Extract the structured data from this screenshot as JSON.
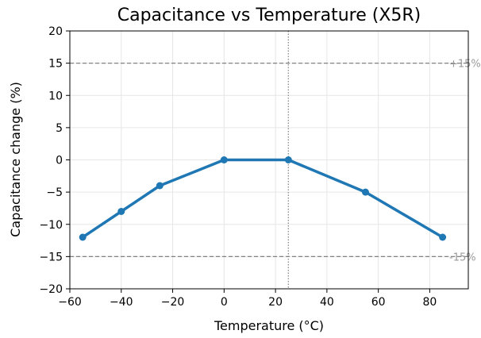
{
  "chart_data": {
    "type": "line",
    "title": "Capacitance vs Temperature (X5R)",
    "xlabel": "Temperature (°C)",
    "ylabel": "Capacitance change (%)",
    "xlim": [
      -60,
      95
    ],
    "ylim": [
      -20,
      20
    ],
    "xticks": [
      -60,
      -40,
      -20,
      0,
      20,
      40,
      60,
      80
    ],
    "yticks": [
      -20,
      -15,
      -10,
      -5,
      0,
      5,
      10,
      15,
      20
    ],
    "grid": true,
    "series": [
      {
        "x": [
          -55,
          -40,
          -25,
          0,
          25,
          55,
          85
        ],
        "y": [
          -12,
          -8,
          -4,
          0,
          0,
          -5,
          -12
        ],
        "color": "#1f77b4"
      }
    ],
    "hlines": [
      {
        "y": 15,
        "label": "+15%",
        "style": "dashed",
        "color": "#808080"
      },
      {
        "y": -15,
        "label": "-15%",
        "style": "dashed",
        "color": "#808080"
      }
    ],
    "vlines": [
      {
        "x": 25,
        "style": "dotted",
        "color": "#808080"
      }
    ]
  }
}
